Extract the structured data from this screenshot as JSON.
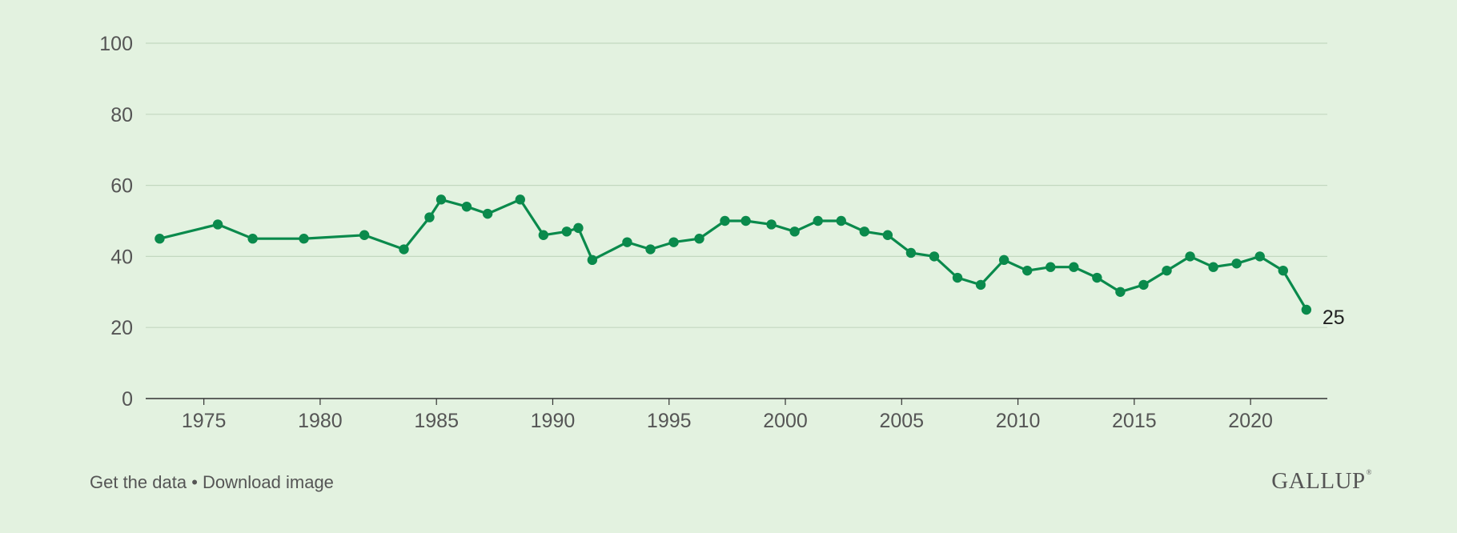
{
  "chart_data": {
    "type": "line",
    "title": "",
    "xlabel": "",
    "ylabel": "",
    "xlim": [
      1972.5,
      2023.3
    ],
    "ylim": [
      0,
      100
    ],
    "y_ticks": [
      0,
      20,
      40,
      60,
      80,
      100
    ],
    "x_ticks": [
      1975,
      1980,
      1985,
      1990,
      1995,
      2000,
      2005,
      2010,
      2015,
      2020
    ],
    "grid": true,
    "legend": "none",
    "line_color": "#0a8a4c",
    "series": [
      {
        "x": [
          1973.1,
          1975.6,
          1977.1,
          1979.3,
          1981.9,
          1983.6,
          1984.7,
          1985.2,
          1986.3,
          1987.2,
          1988.6,
          1989.6,
          1990.6,
          1991.1,
          1991.7,
          1993.2,
          1994.2,
          1995.2,
          1996.3,
          1997.4,
          1998.3,
          1999.4,
          2000.4,
          2001.4,
          2002.4,
          2003.4,
          2004.4,
          2005.4,
          2006.4,
          2007.4,
          2008.4,
          2009.4,
          2010.4,
          2011.4,
          2012.4,
          2013.4,
          2014.4,
          2015.4,
          2016.4,
          2017.4,
          2018.4,
          2019.4,
          2020.4,
          2021.4,
          2022.4
        ],
        "values": [
          45,
          49,
          45,
          45,
          46,
          42,
          51,
          56,
          54,
          52,
          56,
          46,
          47,
          48,
          39,
          44,
          42,
          44,
          45,
          50,
          50,
          49,
          47,
          50,
          50,
          47,
          46,
          41,
          40,
          34,
          32,
          39,
          36,
          37,
          37,
          34,
          30,
          32,
          36,
          40,
          37,
          38,
          40,
          36,
          25
        ]
      }
    ],
    "end_label": "25"
  },
  "footer": {
    "get_data": "Get the data",
    "separator": "•",
    "download": "Download image"
  },
  "logo": {
    "text": "GALLUP",
    "mark": "®"
  }
}
